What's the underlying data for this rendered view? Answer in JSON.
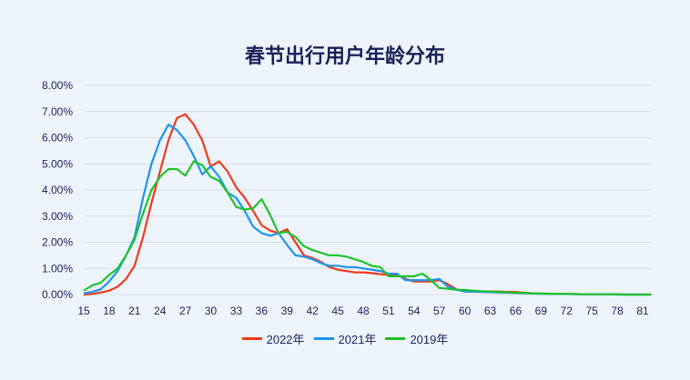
{
  "chart_data": {
    "type": "line",
    "title": "春节出行用户年龄分布",
    "xlabel": "",
    "ylabel": "",
    "xlim": [
      15,
      82
    ],
    "ylim": [
      0,
      8
    ],
    "grid": true,
    "legend_position": "bottom",
    "y_ticks": [
      "0.00%",
      "1.00%",
      "2.00%",
      "3.00%",
      "4.00%",
      "5.00%",
      "6.00%",
      "7.00%",
      "8.00%"
    ],
    "x_ticks": [
      "15",
      "18",
      "21",
      "24",
      "27",
      "30",
      "33",
      "36",
      "39",
      "42",
      "45",
      "48",
      "51",
      "54",
      "57",
      "60",
      "63",
      "66",
      "69",
      "72",
      "75",
      "78",
      "81"
    ],
    "x_start": 15,
    "series": [
      {
        "name": "2022年",
        "color": "#ee3b1e",
        "values": [
          0.0,
          0.02,
          0.08,
          0.15,
          0.3,
          0.6,
          1.1,
          2.2,
          3.5,
          4.7,
          5.9,
          6.75,
          6.9,
          6.5,
          5.9,
          4.9,
          5.1,
          4.7,
          4.1,
          3.7,
          3.2,
          2.65,
          2.45,
          2.35,
          2.5,
          2.0,
          1.5,
          1.4,
          1.25,
          1.05,
          0.95,
          0.9,
          0.85,
          0.85,
          0.82,
          0.78,
          0.75,
          0.75,
          0.6,
          0.5,
          0.5,
          0.5,
          0.55,
          0.4,
          0.2,
          0.12,
          0.12,
          0.12,
          0.12,
          0.12,
          0.1,
          0.1,
          0.07,
          0.05,
          0.04,
          0.03,
          0.03,
          0.02,
          0.02,
          0.01,
          0.01,
          0.01,
          0.01,
          0.01,
          0.0,
          0.0,
          0.0,
          0.0
        ]
      },
      {
        "name": "2021年",
        "color": "#1e95ee",
        "values": [
          0.05,
          0.1,
          0.2,
          0.5,
          0.9,
          1.5,
          2.2,
          3.7,
          5.0,
          5.9,
          6.5,
          6.3,
          5.9,
          5.3,
          4.6,
          4.9,
          4.5,
          3.9,
          3.7,
          3.2,
          2.6,
          2.35,
          2.25,
          2.35,
          1.9,
          1.5,
          1.45,
          1.35,
          1.2,
          1.1,
          1.1,
          1.05,
          1.05,
          1.0,
          0.95,
          0.9,
          0.8,
          0.8,
          0.55,
          0.55,
          0.55,
          0.55,
          0.6,
          0.3,
          0.18,
          0.12,
          0.11,
          0.1,
          0.09,
          0.08,
          0.07,
          0.06,
          0.05,
          0.04,
          0.03,
          0.03,
          0.02,
          0.02,
          0.01,
          0.01,
          0.01,
          0.01,
          0.01,
          0.0,
          0.0,
          0.0,
          0.0,
          0.0
        ]
      },
      {
        "name": "2019年",
        "color": "#1ec42c",
        "values": [
          0.15,
          0.35,
          0.45,
          0.75,
          1.0,
          1.5,
          2.1,
          3.1,
          4.0,
          4.5,
          4.8,
          4.8,
          4.55,
          5.1,
          4.95,
          4.5,
          4.35,
          3.9,
          3.35,
          3.25,
          3.3,
          3.65,
          3.05,
          2.35,
          2.4,
          2.2,
          1.85,
          1.7,
          1.6,
          1.5,
          1.5,
          1.45,
          1.35,
          1.25,
          1.1,
          1.05,
          0.7,
          0.7,
          0.7,
          0.7,
          0.8,
          0.55,
          0.25,
          0.22,
          0.18,
          0.18,
          0.15,
          0.13,
          0.12,
          0.1,
          0.08,
          0.07,
          0.06,
          0.05,
          0.04,
          0.03,
          0.03,
          0.02,
          0.02,
          0.01,
          0.01,
          0.01,
          0.01,
          0.0,
          0.0,
          0.0,
          0.0,
          0.0
        ]
      }
    ]
  }
}
